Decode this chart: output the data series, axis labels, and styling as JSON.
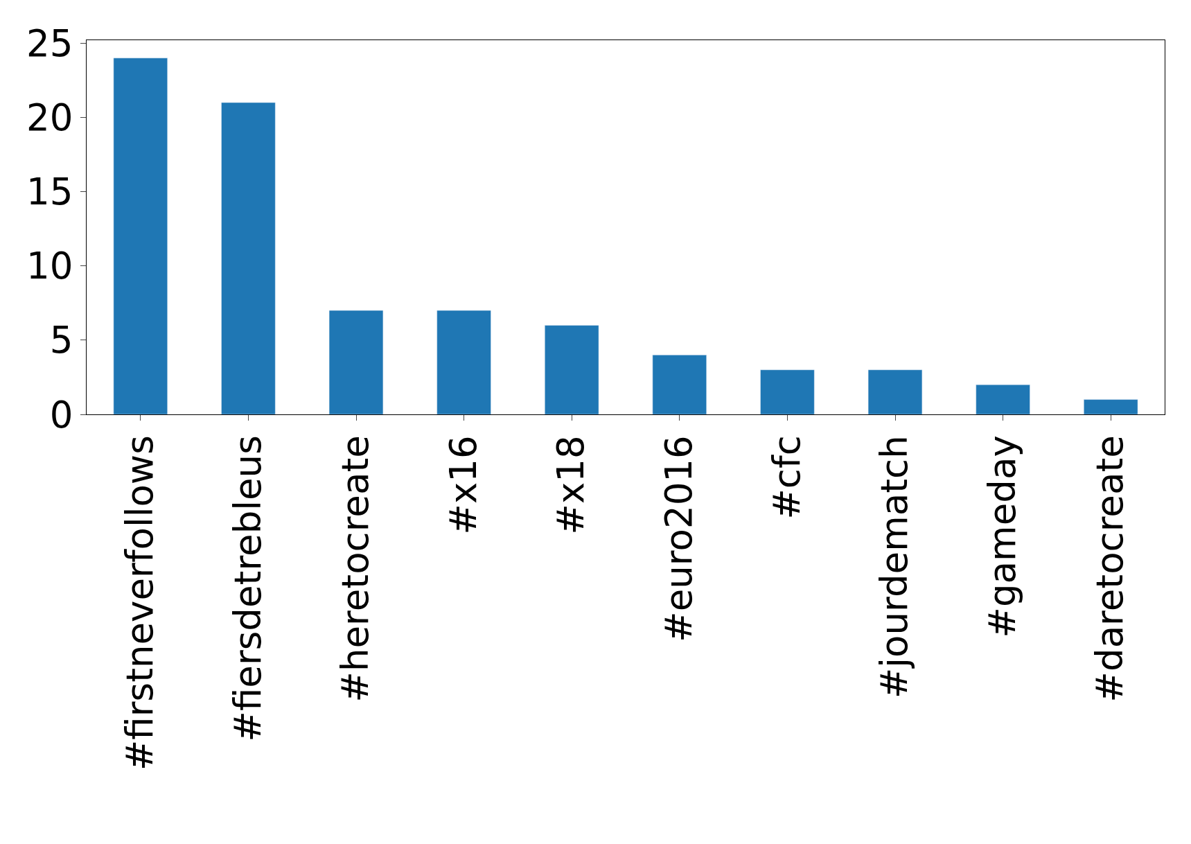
{
  "chart_data": {
    "type": "bar",
    "categories": [
      "#firstneverfollows",
      "#fiersdetrebleus",
      "#heretocreate",
      "#x16",
      "#x18",
      "#euro2016",
      "#cfc",
      "#jourdematch",
      "#gameday",
      "#daretocreate"
    ],
    "values": [
      24,
      21,
      7,
      7,
      6,
      4,
      3,
      3,
      2,
      1
    ],
    "color": "#1f77b4",
    "ylim": [
      0,
      25.2
    ],
    "yticks": [
      0,
      5,
      10,
      15,
      20,
      25
    ],
    "legend": false
  }
}
